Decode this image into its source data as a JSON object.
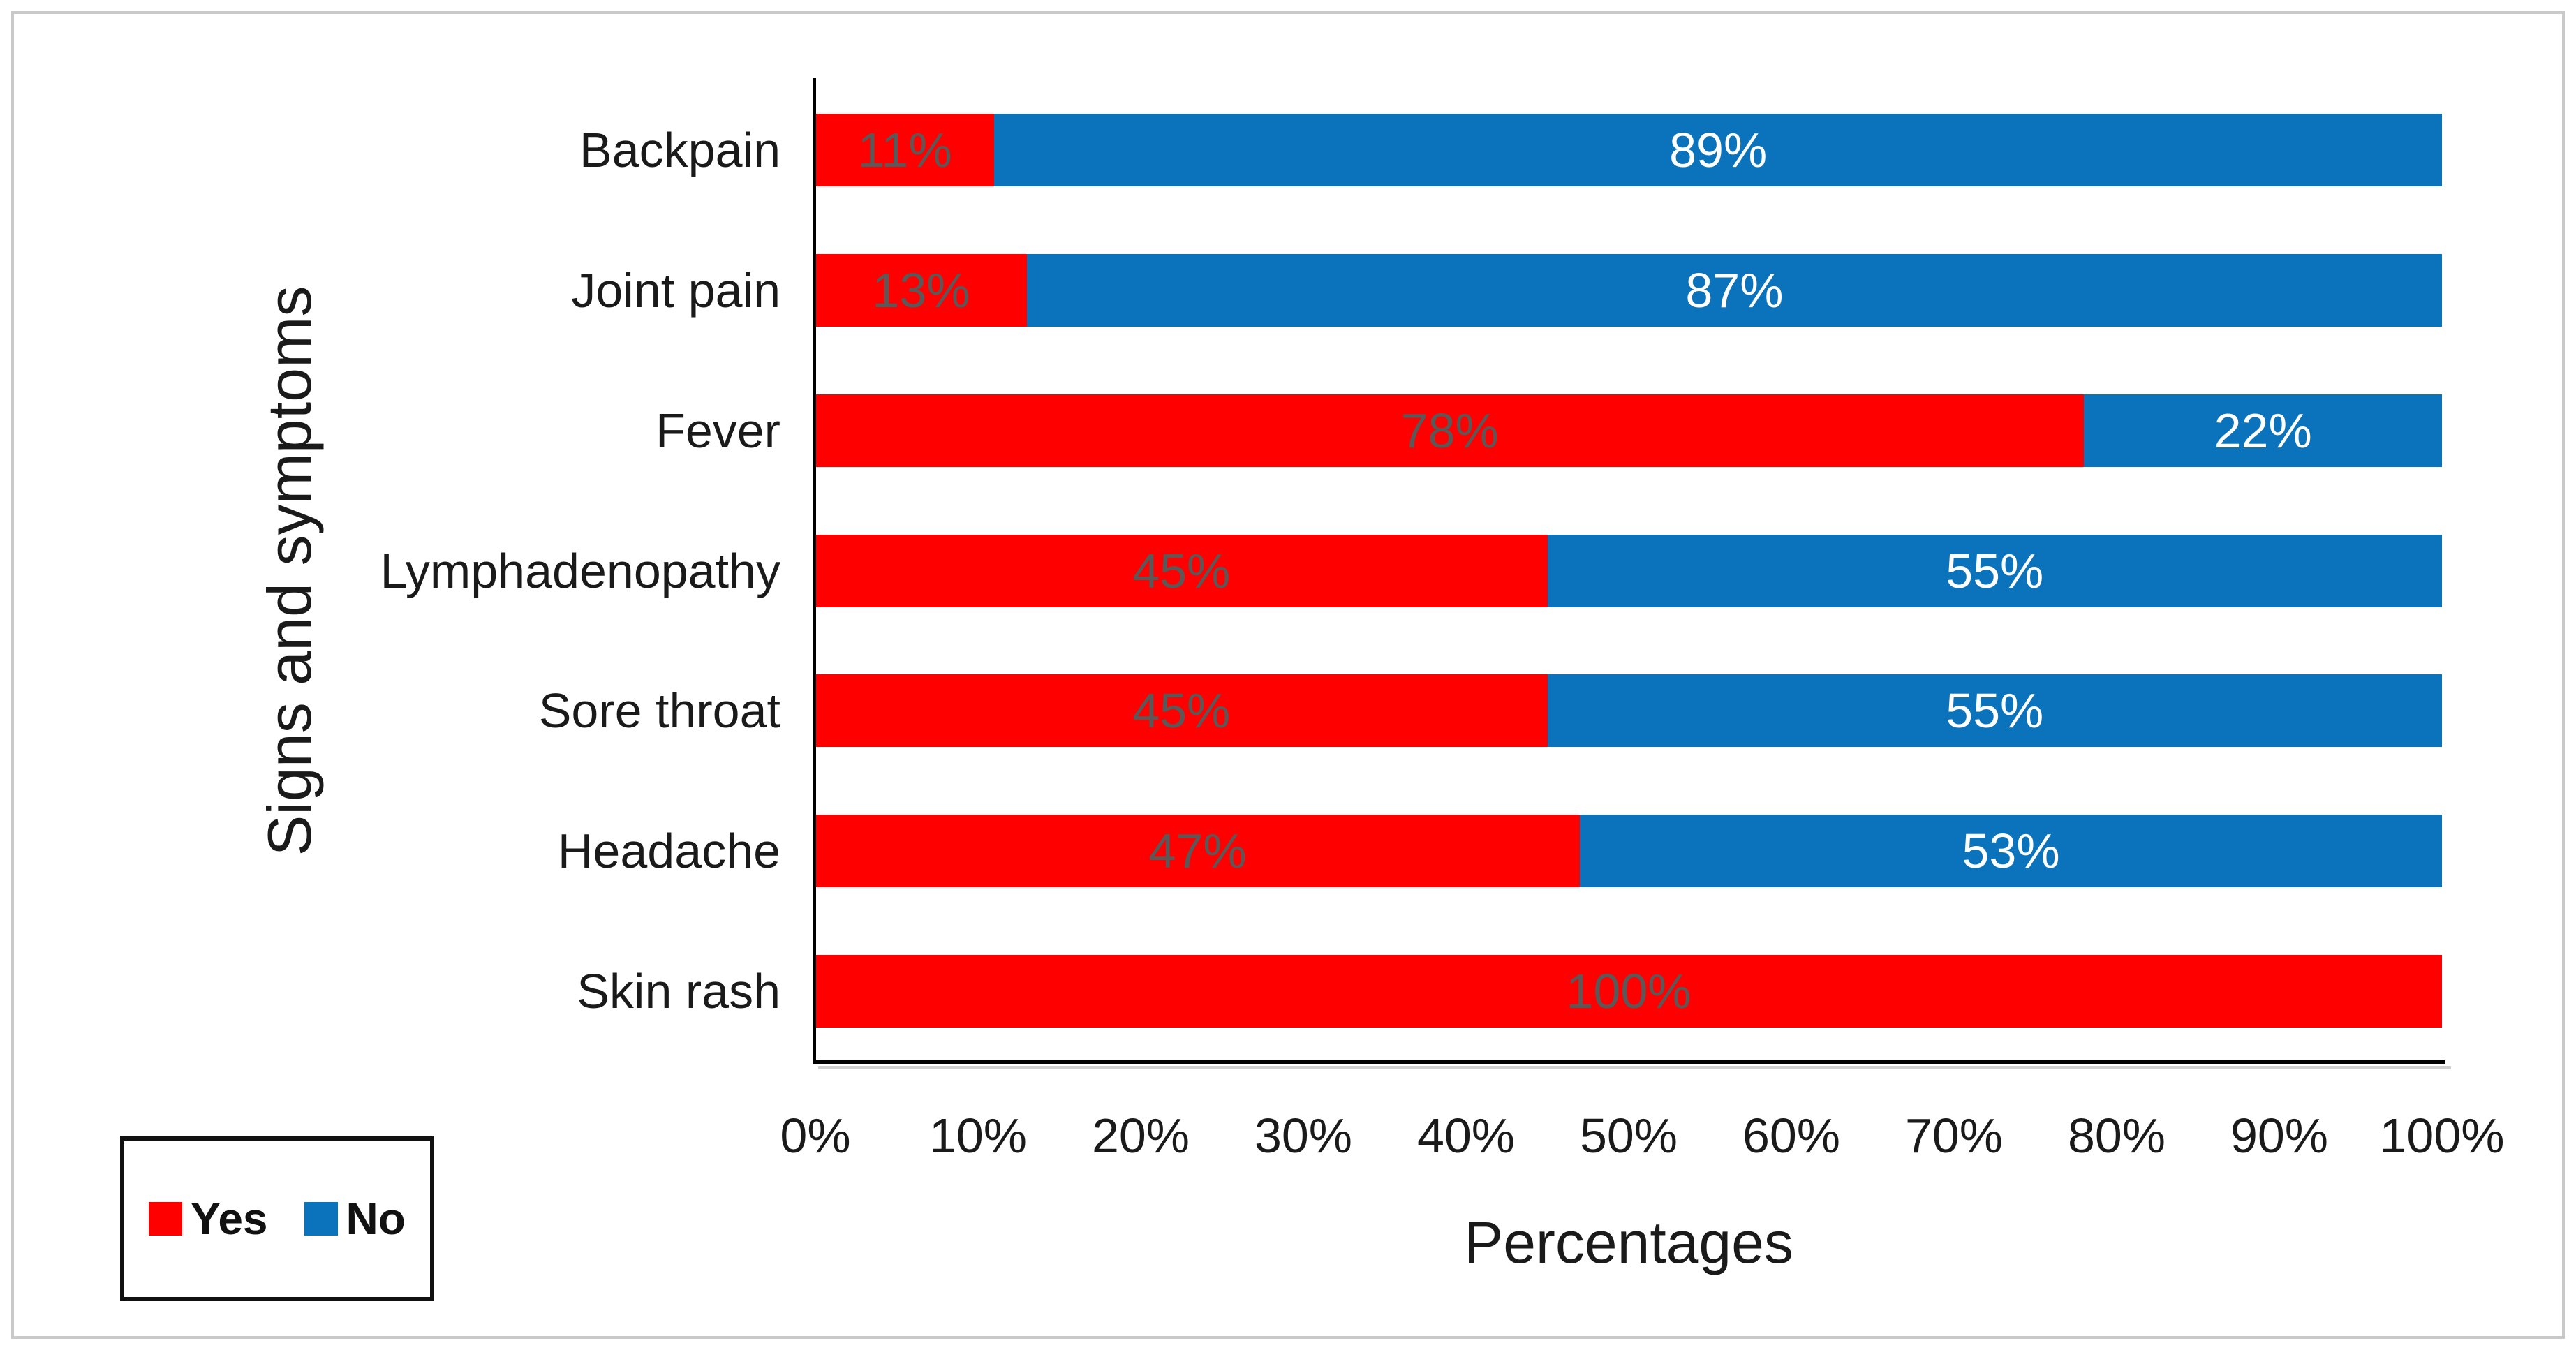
{
  "chart_data": {
    "type": "bar",
    "orientation": "horizontal",
    "stacked": true,
    "title": "",
    "xlabel": "Percentages",
    "ylabel": "Signs and symptoms",
    "xlim": [
      0,
      100
    ],
    "grid": false,
    "legend_position": "bottom-left",
    "categories": [
      "Backpain",
      "Joint pain",
      "Fever",
      "Lymphadenopathy",
      "Sore throat",
      "Headache",
      "Skin rash"
    ],
    "series": [
      {
        "name": "Yes",
        "color": "#fe0000",
        "label_color": "#595959",
        "values": [
          11,
          13,
          78,
          45,
          45,
          47,
          100
        ],
        "labels": [
          "11%",
          "13%",
          "78%",
          "45%",
          "45%",
          "47%",
          "100%"
        ]
      },
      {
        "name": "No",
        "color": "#0b72bc",
        "label_color": "#ffffff",
        "values": [
          89,
          87,
          22,
          55,
          55,
          53,
          0
        ],
        "labels": [
          "89%",
          "87%",
          "22%",
          "55%",
          "55%",
          "53%",
          ""
        ]
      }
    ],
    "x_ticks": [
      "0%",
      "10%",
      "20%",
      "30%",
      "40%",
      "50%",
      "60%",
      "70%",
      "80%",
      "90%",
      "100%"
    ]
  },
  "colors": {
    "axis_line": "#000000",
    "axis_shadow": "#cfcfcf",
    "text": "#1a1a1a",
    "frame_border": "#c9c9c9",
    "background": "#ffffff",
    "legend_border": "#111111"
  }
}
